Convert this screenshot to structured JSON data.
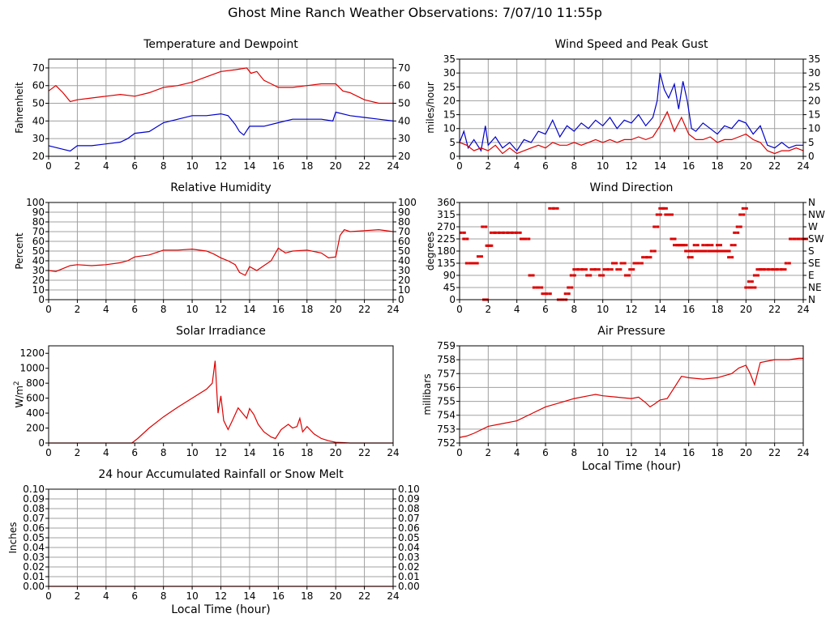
{
  "title": "Ghost Mine Ranch Weather Observations: 7/07/10 11:55p",
  "colors": {
    "red": "#dd0000",
    "blue": "#0000cc",
    "grid": "#a0a0a0"
  },
  "chart_data": [
    {
      "id": "temperature",
      "type": "line",
      "title": "Temperature and Dewpoint",
      "ylabel": "Fahrenheit",
      "xlabel": "",
      "xlim": [
        0,
        24
      ],
      "ylim": [
        20,
        75
      ],
      "y_ticks": [
        "20",
        "30",
        "40",
        "50",
        "60",
        "70"
      ],
      "x_ticks": [
        "0",
        "2",
        "4",
        "6",
        "8",
        "10",
        "12",
        "14",
        "16",
        "18",
        "20",
        "22",
        "24"
      ],
      "grid": true,
      "series": [
        {
          "color": "#dd0000",
          "x": [
            0,
            0.5,
            1,
            1.5,
            2,
            3,
            4,
            5,
            6,
            7,
            8,
            9,
            10,
            11,
            12,
            13,
            13.8,
            14.1,
            14.5,
            15,
            15.5,
            16,
            17,
            18,
            19,
            20,
            20.5,
            21,
            22,
            23,
            24
          ],
          "y": [
            57,
            60,
            56,
            51,
            52,
            53,
            54,
            55,
            54,
            56,
            59,
            60,
            62,
            65,
            68,
            69,
            70,
            67,
            68,
            63,
            61,
            59,
            59,
            60,
            61,
            61,
            57,
            56,
            52,
            50,
            50
          ]
        },
        {
          "color": "#0000cc",
          "x": [
            0,
            1,
            1.5,
            2,
            3,
            4,
            5,
            5.5,
            6,
            7,
            8,
            9,
            10,
            11,
            12,
            12.5,
            13,
            13.3,
            13.6,
            14,
            15,
            16,
            17,
            18,
            19,
            19.8,
            20,
            21,
            22,
            23,
            24
          ],
          "y": [
            26,
            24,
            23,
            26,
            26,
            27,
            28,
            30,
            33,
            34,
            39,
            41,
            43,
            43,
            44,
            43,
            38,
            34,
            32,
            37,
            37,
            39,
            41,
            41,
            41,
            40,
            45,
            43,
            42,
            41,
            40
          ]
        }
      ]
    },
    {
      "id": "wind-speed",
      "type": "line",
      "title": "Wind Speed and Peak Gust",
      "ylabel": "miles/hour",
      "xlabel": "",
      "xlim": [
        0,
        24
      ],
      "ylim": [
        0,
        35
      ],
      "y_ticks": [
        "0",
        "5",
        "10",
        "15",
        "20",
        "25",
        "30",
        "35"
      ],
      "x_ticks": [
        "0",
        "2",
        "4",
        "6",
        "8",
        "10",
        "12",
        "14",
        "16",
        "18",
        "20",
        "22",
        "24"
      ],
      "grid": true,
      "series": [
        {
          "color": "#0000cc",
          "x": [
            0,
            0.3,
            0.6,
            1,
            1.5,
            1.8,
            2,
            2.5,
            3,
            3.5,
            4,
            4.5,
            5,
            5.5,
            6,
            6.5,
            7,
            7.5,
            8,
            8.5,
            9,
            9.5,
            10,
            10.5,
            11,
            11.5,
            12,
            12.5,
            13,
            13.5,
            13.8,
            14,
            14.3,
            14.6,
            15,
            15.3,
            15.6,
            15.9,
            16.2,
            16.5,
            17,
            17.5,
            18,
            18.5,
            19,
            19.5,
            20,
            20.5,
            21,
            21.5,
            22,
            22.5,
            23,
            23.5,
            24
          ],
          "y": [
            5,
            9,
            3,
            6,
            2,
            11,
            4,
            7,
            3,
            5,
            2,
            6,
            5,
            9,
            8,
            13,
            7,
            11,
            9,
            12,
            10,
            13,
            11,
            14,
            10,
            13,
            12,
            15,
            11,
            14,
            20,
            30,
            24,
            21,
            26,
            17,
            27,
            20,
            10,
            9,
            12,
            10,
            8,
            11,
            10,
            13,
            12,
            8,
            11,
            4,
            3,
            5,
            3,
            4,
            4
          ]
        },
        {
          "color": "#dd0000",
          "x": [
            0,
            0.5,
            1,
            1.5,
            2,
            2.5,
            3,
            3.5,
            4,
            4.5,
            5,
            5.5,
            6,
            6.5,
            7,
            7.5,
            8,
            8.5,
            9,
            9.5,
            10,
            10.5,
            11,
            11.5,
            12,
            12.5,
            13,
            13.5,
            14,
            14.5,
            15,
            15.5,
            16,
            16.5,
            17,
            17.5,
            18,
            18.5,
            19,
            19.5,
            20,
            20.5,
            21,
            21.5,
            22,
            22.5,
            23,
            23.5,
            24
          ],
          "y": [
            5,
            4,
            2,
            3,
            2,
            4,
            1,
            3,
            1,
            2,
            3,
            4,
            3,
            5,
            4,
            4,
            5,
            4,
            5,
            6,
            5,
            6,
            5,
            6,
            6,
            7,
            6,
            7,
            11,
            16,
            9,
            14,
            8,
            6,
            6,
            7,
            5,
            6,
            6,
            7,
            8,
            6,
            5,
            2,
            1,
            2,
            2,
            3,
            2
          ]
        }
      ]
    },
    {
      "id": "humidity",
      "type": "line",
      "title": "Relative Humidity",
      "ylabel": "Percent",
      "xlabel": "",
      "xlim": [
        0,
        24
      ],
      "ylim": [
        0,
        100
      ],
      "y_ticks": [
        "0",
        "10",
        "20",
        "30",
        "40",
        "50",
        "60",
        "70",
        "80",
        "90",
        "100"
      ],
      "x_ticks": [
        "0",
        "2",
        "4",
        "6",
        "8",
        "10",
        "12",
        "14",
        "16",
        "18",
        "20",
        "22",
        "24"
      ],
      "grid": true,
      "series": [
        {
          "color": "#dd0000",
          "x": [
            0,
            0.5,
            1,
            1.5,
            2,
            3,
            4,
            5,
            5.5,
            6,
            7,
            8,
            9,
            10,
            11,
            11.5,
            12,
            12.5,
            13,
            13.3,
            13.7,
            14,
            14.5,
            15,
            15.5,
            16,
            16.5,
            17,
            18,
            19,
            19.5,
            20,
            20.3,
            20.6,
            21,
            22,
            23,
            24
          ],
          "y": [
            30,
            29,
            32,
            35,
            36,
            35,
            36,
            38,
            40,
            44,
            46,
            51,
            51,
            52,
            50,
            47,
            43,
            40,
            36,
            28,
            25,
            34,
            30,
            35,
            40,
            53,
            48,
            50,
            51,
            48,
            43,
            44,
            66,
            72,
            70,
            71,
            72,
            70
          ]
        }
      ]
    },
    {
      "id": "wind-direction",
      "type": "scatter",
      "title": "Wind Direction",
      "ylabel": "degrees",
      "xlabel": "",
      "xlim": [
        0,
        24
      ],
      "ylim": [
        0,
        360
      ],
      "y_ticks": [
        "0",
        "45",
        "90",
        "135",
        "180",
        "225",
        "270",
        "315",
        "360"
      ],
      "y_ticks_right": [
        "N",
        "NE",
        "E",
        "SE",
        "S",
        "SW",
        "W",
        "NW",
        "N"
      ],
      "x_ticks": [
        "0",
        "2",
        "4",
        "6",
        "8",
        "10",
        "12",
        "14",
        "16",
        "18",
        "20",
        "22",
        "24"
      ],
      "grid": true,
      "series": [
        {
          "color": "#dd0000",
          "x": [
            0.1,
            0.3,
            0.5,
            0.8,
            1.0,
            1.3,
            1.6,
            1.7,
            1.9,
            2.0,
            2.2,
            2.5,
            2.8,
            3.1,
            3.4,
            3.7,
            4.0,
            4.3,
            4.6,
            4.9,
            5.2,
            5.5,
            5.8,
            6.1,
            6.3,
            6.6,
            6.9,
            7.2,
            7.4,
            7.6,
            7.8,
            8.0,
            8.3,
            8.6,
            8.9,
            9.2,
            9.5,
            9.8,
            10.1,
            10.4,
            10.7,
            11.0,
            11.3,
            11.6,
            11.9,
            12.2,
            12.5,
            12.8,
            13.1,
            13.4,
            13.6,
            13.8,
            14.0,
            14.2,
            14.4,
            14.6,
            14.8,
            15.0,
            15.2,
            15.4,
            15.6,
            15.8,
            16.0,
            16.2,
            16.4,
            16.6,
            16.8,
            17.0,
            17.2,
            17.4,
            17.6,
            17.8,
            18.0,
            18.2,
            18.4,
            18.6,
            18.8,
            19.0,
            19.2,
            19.4,
            19.6,
            19.8,
            20.0,
            20.2,
            20.4,
            20.6,
            20.8,
            21.0,
            21.3,
            21.6,
            21.9,
            22.2,
            22.5,
            22.8,
            23.1,
            23.4,
            23.7,
            24.0
          ],
          "y": [
            248,
            225,
            135,
            135,
            135,
            160,
            270,
            0,
            200,
            200,
            248,
            248,
            248,
            248,
            248,
            248,
            248,
            225,
            225,
            90,
            45,
            45,
            22,
            22,
            338,
            338,
            0,
            0,
            22,
            45,
            90,
            112,
            112,
            112,
            90,
            112,
            112,
            90,
            112,
            112,
            135,
            112,
            135,
            90,
            112,
            135,
            135,
            157,
            157,
            180,
            270,
            315,
            338,
            338,
            315,
            315,
            225,
            202,
            202,
            202,
            202,
            180,
            157,
            180,
            202,
            180,
            180,
            202,
            180,
            202,
            180,
            180,
            202,
            180,
            180,
            180,
            157,
            202,
            248,
            270,
            315,
            338,
            45,
            67,
            45,
            90,
            112,
            112,
            112,
            112,
            112,
            112,
            112,
            135,
            225,
            225,
            225,
            225
          ]
        }
      ]
    },
    {
      "id": "solar",
      "type": "line",
      "title": "Solar Irradiance",
      "ylabel": "W/m",
      "ylabel_sup": "2",
      "xlabel": "",
      "xlim": [
        0,
        24
      ],
      "ylim": [
        0,
        1300
      ],
      "y_ticks": [
        "0",
        "200",
        "400",
        "600",
        "800",
        "1000",
        "1200"
      ],
      "x_ticks": [
        "0",
        "2",
        "4",
        "6",
        "8",
        "10",
        "12",
        "14",
        "16",
        "18",
        "20",
        "22",
        "24"
      ],
      "grid": false,
      "series": [
        {
          "color": "#dd0000",
          "x": [
            0,
            5.8,
            6.2,
            7,
            8,
            9,
            10,
            11,
            11.4,
            11.6,
            11.8,
            12.0,
            12.2,
            12.5,
            12.8,
            13.2,
            13.5,
            13.8,
            14.0,
            14.3,
            14.6,
            15.0,
            15.5,
            15.8,
            16.2,
            16.7,
            17.0,
            17.3,
            17.5,
            17.7,
            18.0,
            18.5,
            19,
            19.5,
            20,
            20.5,
            21,
            24
          ],
          "y": [
            0,
            0,
            60,
            200,
            350,
            480,
            600,
            720,
            800,
            1100,
            400,
            630,
            300,
            180,
            300,
            470,
            400,
            330,
            460,
            380,
            250,
            150,
            80,
            60,
            180,
            250,
            200,
            220,
            330,
            150,
            220,
            120,
            60,
            30,
            10,
            5,
            0,
            0
          ]
        }
      ]
    },
    {
      "id": "pressure",
      "type": "line",
      "title": "Air Pressure",
      "ylabel": "millibars",
      "xlabel": "Local Time (hour)",
      "xlim": [
        0,
        24
      ],
      "ylim": [
        752,
        759
      ],
      "y_ticks": [
        "752",
        "753",
        "754",
        "755",
        "756",
        "757",
        "758",
        "759"
      ],
      "x_ticks": [
        "0",
        "2",
        "4",
        "6",
        "8",
        "10",
        "12",
        "14",
        "16",
        "18",
        "20",
        "22",
        "24"
      ],
      "grid": true,
      "series": [
        {
          "color": "#dd0000",
          "x": [
            0,
            0.5,
            1,
            2,
            3,
            4,
            5,
            6,
            7,
            8,
            9,
            9.5,
            10,
            11,
            12,
            12.5,
            13,
            13.3,
            13.6,
            14,
            14.5,
            15,
            15.5,
            16,
            17,
            18,
            19,
            19.5,
            20,
            20.3,
            20.6,
            21,
            22,
            23,
            23.7,
            24
          ],
          "y": [
            752.4,
            752.5,
            752.7,
            753.2,
            753.4,
            753.6,
            754.1,
            754.6,
            754.9,
            755.2,
            755.4,
            755.5,
            755.4,
            755.3,
            755.2,
            755.3,
            754.9,
            754.6,
            754.8,
            755.1,
            755.2,
            756.0,
            756.8,
            756.7,
            756.6,
            756.7,
            757.0,
            757.4,
            757.6,
            757.0,
            756.2,
            757.8,
            758.0,
            758.0,
            758.1,
            758.1
          ]
        }
      ]
    },
    {
      "id": "rainfall",
      "type": "line",
      "title": "24 hour Accumulated Rainfall or Snow Melt",
      "ylabel": "Inches",
      "xlabel": "Local Time (hour)",
      "xlim": [
        0,
        24
      ],
      "ylim": [
        0,
        0.1
      ],
      "y_ticks": [
        "0.00",
        "0.01",
        "0.02",
        "0.03",
        "0.04",
        "0.05",
        "0.06",
        "0.07",
        "0.08",
        "0.09",
        "0.10"
      ],
      "x_ticks": [
        "0",
        "2",
        "4",
        "6",
        "8",
        "10",
        "12",
        "14",
        "16",
        "18",
        "20",
        "22",
        "24"
      ],
      "grid": true,
      "series": [
        {
          "color": "#dd0000",
          "x": [
            0,
            24
          ],
          "y": [
            0,
            0
          ]
        }
      ]
    }
  ]
}
